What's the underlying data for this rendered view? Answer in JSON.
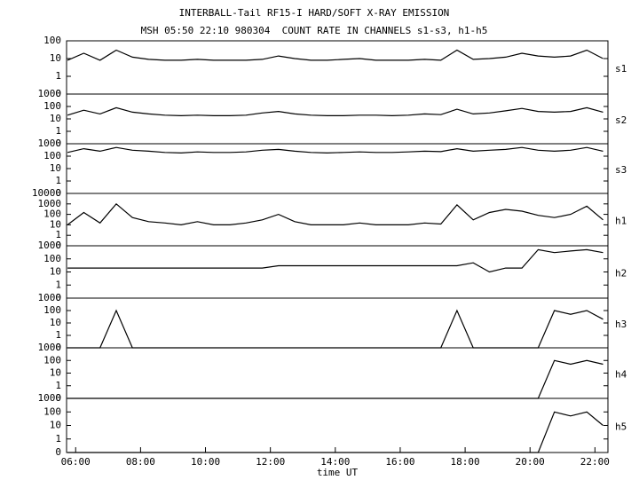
{
  "chart_data": [
    {
      "type": "line",
      "title": "INTERBALL-Tail RF15-I HARD/SOFT X-RAY EMISSION",
      "subtitle": "MSH 05:50 22:10 980304  COUNT RATE IN CHANNELS s1-s3, h1-h5",
      "yscale": "log",
      "xlim": [
        5.72,
        22.4
      ],
      "ylim": [
        0,
        100
      ],
      "yticks": [
        0,
        1,
        10,
        100
      ],
      "x": [
        5.75,
        6.25,
        6.75,
        7.25,
        7.75,
        8.25,
        8.75,
        9.25,
        9.75,
        10.25,
        10.75,
        11.25,
        11.75,
        12.25,
        12.75,
        13.25,
        13.75,
        14.25,
        14.75,
        15.25,
        15.75,
        16.25,
        16.75,
        17.25,
        17.75,
        18.25,
        18.75,
        19.25,
        19.75,
        20.25,
        20.75,
        21.25,
        21.75,
        22.25
      ],
      "series": [
        {
          "name": "s1",
          "color": "#000000",
          "values": [
            8,
            20,
            8,
            30,
            12,
            9,
            8,
            8,
            9,
            8,
            8,
            8,
            9,
            14,
            10,
            8,
            8,
            9,
            10,
            8,
            8,
            8,
            9,
            8,
            30,
            9,
            10,
            12,
            20,
            14,
            12,
            14,
            30,
            10
          ]
        }
      ]
    },
    {
      "type": "line",
      "yscale": "log",
      "xlim": [
        5.72,
        22.4
      ],
      "ylim": [
        0,
        1000
      ],
      "yticks": [
        0,
        1,
        10,
        100,
        1000
      ],
      "x": [
        5.75,
        6.25,
        6.75,
        7.25,
        7.75,
        8.25,
        8.75,
        9.25,
        9.75,
        10.25,
        10.75,
        11.25,
        11.75,
        12.25,
        12.75,
        13.25,
        13.75,
        14.25,
        14.75,
        15.25,
        15.75,
        16.25,
        16.75,
        17.25,
        17.75,
        18.25,
        18.75,
        19.25,
        19.75,
        20.25,
        20.75,
        21.25,
        21.75,
        22.25
      ],
      "series": [
        {
          "name": "s2",
          "color": "#000000",
          "values": [
            20,
            50,
            25,
            80,
            35,
            25,
            20,
            18,
            20,
            18,
            18,
            20,
            30,
            40,
            25,
            20,
            18,
            18,
            20,
            20,
            18,
            20,
            25,
            22,
            60,
            25,
            30,
            45,
            70,
            40,
            35,
            40,
            80,
            35
          ]
        }
      ]
    },
    {
      "type": "line",
      "yscale": "log",
      "xlim": [
        5.72,
        22.4
      ],
      "ylim": [
        0,
        1000
      ],
      "yticks": [
        0,
        1,
        10,
        100,
        1000
      ],
      "x": [
        5.75,
        6.25,
        6.75,
        7.25,
        7.75,
        8.25,
        8.75,
        9.25,
        9.75,
        10.25,
        10.75,
        11.25,
        11.75,
        12.25,
        12.75,
        13.25,
        13.75,
        14.25,
        14.75,
        15.25,
        15.75,
        16.25,
        16.75,
        17.25,
        17.75,
        18.25,
        18.75,
        19.25,
        19.75,
        20.25,
        20.75,
        21.25,
        21.75,
        22.25
      ],
      "series": [
        {
          "name": "s3",
          "color": "#000000",
          "values": [
            200,
            400,
            250,
            500,
            300,
            250,
            200,
            180,
            220,
            200,
            200,
            220,
            300,
            350,
            250,
            200,
            180,
            200,
            220,
            200,
            200,
            220,
            250,
            230,
            400,
            250,
            300,
            350,
            500,
            300,
            250,
            300,
            500,
            250
          ]
        }
      ]
    },
    {
      "type": "line",
      "yscale": "log",
      "xlim": [
        5.72,
        22.4
      ],
      "ylim": [
        0,
        10000
      ],
      "yticks": [
        0,
        1,
        10,
        100,
        1000,
        10000
      ],
      "x": [
        5.75,
        6.25,
        6.75,
        7.25,
        7.75,
        8.25,
        8.75,
        9.25,
        9.75,
        10.25,
        10.75,
        11.25,
        11.75,
        12.25,
        12.75,
        13.25,
        13.75,
        14.25,
        14.75,
        15.25,
        15.75,
        16.25,
        16.75,
        17.25,
        17.75,
        18.25,
        18.75,
        19.25,
        19.75,
        20.25,
        20.75,
        21.25,
        21.75,
        22.25
      ],
      "series": [
        {
          "name": "h1",
          "color": "#000000",
          "values": [
            10,
            150,
            15,
            1000,
            50,
            20,
            15,
            10,
            20,
            10,
            10,
            15,
            30,
            100,
            20,
            10,
            10,
            10,
            15,
            10,
            10,
            10,
            15,
            12,
            800,
            30,
            150,
            300,
            200,
            80,
            50,
            100,
            600,
            30
          ]
        }
      ]
    },
    {
      "type": "line",
      "yscale": "log",
      "xlim": [
        5.72,
        22.4
      ],
      "ylim": [
        0,
        1000
      ],
      "yticks": [
        0,
        1,
        10,
        100,
        1000
      ],
      "x": [
        5.75,
        6.25,
        6.75,
        7.25,
        7.75,
        8.25,
        8.75,
        9.25,
        9.75,
        10.25,
        10.75,
        11.25,
        11.75,
        12.25,
        12.75,
        13.25,
        13.75,
        14.25,
        14.75,
        15.25,
        15.75,
        16.25,
        16.75,
        17.25,
        17.75,
        18.25,
        18.75,
        19.25,
        19.75,
        20.25,
        20.75,
        21.25,
        21.75,
        22.25
      ],
      "series": [
        {
          "name": "h2",
          "color": "#000000",
          "values": [
            20,
            20,
            20,
            20,
            20,
            20,
            20,
            20,
            20,
            20,
            20,
            20,
            20,
            30,
            30,
            30,
            30,
            30,
            30,
            30,
            30,
            30,
            30,
            30,
            30,
            50,
            10,
            20,
            20,
            500,
            300,
            400,
            500,
            300
          ]
        }
      ]
    },
    {
      "type": "line",
      "yscale": "log",
      "xlim": [
        5.72,
        22.4
      ],
      "ylim": [
        0,
        1000
      ],
      "yticks": [
        0,
        1,
        10,
        100,
        1000
      ],
      "x": [
        5.75,
        6.25,
        6.75,
        7.25,
        7.75,
        8.25,
        8.75,
        9.25,
        9.75,
        10.25,
        10.75,
        11.25,
        11.75,
        12.25,
        12.75,
        13.25,
        13.75,
        14.25,
        14.75,
        15.25,
        15.75,
        16.25,
        16.75,
        17.25,
        17.75,
        18.25,
        18.75,
        19.25,
        19.75,
        20.25,
        20.75,
        21.25,
        21.75,
        22.25
      ],
      "series": [
        {
          "name": "h3",
          "color": "#000000",
          "values": [
            0,
            0,
            0,
            100,
            0,
            0,
            0,
            0,
            0,
            0,
            0,
            0,
            0,
            0,
            0,
            0,
            0,
            0,
            0,
            0,
            0,
            0,
            0,
            0,
            100,
            0,
            0,
            0,
            0,
            0,
            100,
            50,
            100,
            20
          ]
        }
      ]
    },
    {
      "type": "line",
      "yscale": "log",
      "xlim": [
        5.72,
        22.4
      ],
      "ylim": [
        0,
        1000
      ],
      "yticks": [
        0,
        1,
        10,
        100,
        1000
      ],
      "x": [
        5.75,
        6.25,
        6.75,
        7.25,
        7.75,
        8.25,
        8.75,
        9.25,
        9.75,
        10.25,
        10.75,
        11.25,
        11.75,
        12.25,
        12.75,
        13.25,
        13.75,
        14.25,
        14.75,
        15.25,
        15.75,
        16.25,
        16.75,
        17.25,
        17.75,
        18.25,
        18.75,
        19.25,
        19.75,
        20.25,
        20.75,
        21.25,
        21.75,
        22.25
      ],
      "series": [
        {
          "name": "h4",
          "color": "#000000",
          "values": [
            0,
            0,
            0,
            0,
            0,
            0,
            0,
            0,
            0,
            0,
            0,
            0,
            0,
            0,
            0,
            0,
            0,
            0,
            0,
            0,
            0,
            0,
            0,
            0,
            0,
            0,
            0,
            0,
            0,
            0,
            100,
            50,
            100,
            50
          ]
        }
      ]
    },
    {
      "type": "line",
      "yscale": "log",
      "xlim": [
        5.72,
        22.4
      ],
      "ylim": [
        0,
        1000
      ],
      "yticks": [
        0,
        1,
        10,
        100,
        1000
      ],
      "xlabel": "time UT",
      "xticks": [
        {
          "value": 6,
          "label": "06:00"
        },
        {
          "value": 8,
          "label": "08:00"
        },
        {
          "value": 10,
          "label": "10:00"
        },
        {
          "value": 12,
          "label": "12:00"
        },
        {
          "value": 14,
          "label": "14:00"
        },
        {
          "value": 16,
          "label": "16:00"
        },
        {
          "value": 18,
          "label": "18:00"
        },
        {
          "value": 20,
          "label": "20:00"
        },
        {
          "value": 22,
          "label": "22:00"
        }
      ],
      "x": [
        5.75,
        6.25,
        6.75,
        7.25,
        7.75,
        8.25,
        8.75,
        9.25,
        9.75,
        10.25,
        10.75,
        11.25,
        11.75,
        12.25,
        12.75,
        13.25,
        13.75,
        14.25,
        14.75,
        15.25,
        15.75,
        16.25,
        16.75,
        17.25,
        17.75,
        18.25,
        18.75,
        19.25,
        19.75,
        20.25,
        20.75,
        21.25,
        21.75,
        22.25
      ],
      "series": [
        {
          "name": "h5",
          "color": "#000000",
          "values": [
            0,
            0,
            0,
            0,
            0,
            0,
            0,
            0,
            0,
            0,
            0,
            0,
            0,
            0,
            0,
            0,
            0,
            0,
            0,
            0,
            0,
            0,
            0,
            0,
            0,
            0,
            0,
            0,
            0,
            0,
            100,
            50,
            100,
            10
          ]
        }
      ]
    }
  ]
}
